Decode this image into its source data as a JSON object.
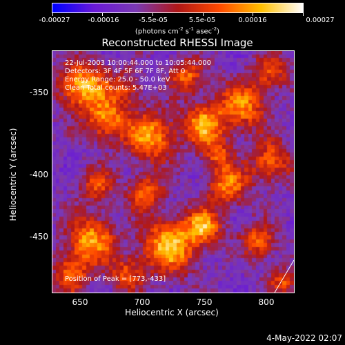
{
  "colorbar": {
    "labels": [
      "-0.00027",
      "-0.00016",
      "-5.5e-05",
      "5.5e-05",
      "0.00016",
      "0.00027"
    ],
    "unit_prefix": "(photons cm",
    "unit_exp1": "-2",
    "unit_mid": " s",
    "unit_exp2": "-1",
    "unit_tail": " asec",
    "unit_exp3": "-2",
    "unit_close": ")",
    "range": [
      -0.00027,
      0.00027
    ]
  },
  "chart_data": {
    "type": "heatmap",
    "title": "Reconstructed RHESSI Image",
    "xlabel": "Heliocentric X (arcsec)",
    "ylabel": "Heliocentric Y (arcsec)",
    "xlim": [
      627,
      822
    ],
    "ylim": [
      -495,
      -300
    ],
    "xticks": [
      "650",
      "700",
      "750",
      "800"
    ],
    "yticks": [
      "-350",
      "-400",
      "-450"
    ],
    "colormap": [
      "#0000ff",
      "#6a1ad8",
      "#7b3ab4",
      "#b01818",
      "#ff4a00",
      "#ffc000",
      "#ffffff"
    ],
    "peak": [
      773,
      -433
    ]
  },
  "annotations": {
    "line1": "22-Jul-2003 10:00:44.000 to 10:05:44.000",
    "line2": "Detectors: 3F 4F 5F 6F 7F 8F, Att 0",
    "line3": "Energy Range: 25.0 - 50.0 keV",
    "line4": "Clean   Total counts: 5.47E+03",
    "peak": "Position of Peak = [773,-433]"
  },
  "footer": {
    "timestamp": "4-May-2022 02:07"
  }
}
